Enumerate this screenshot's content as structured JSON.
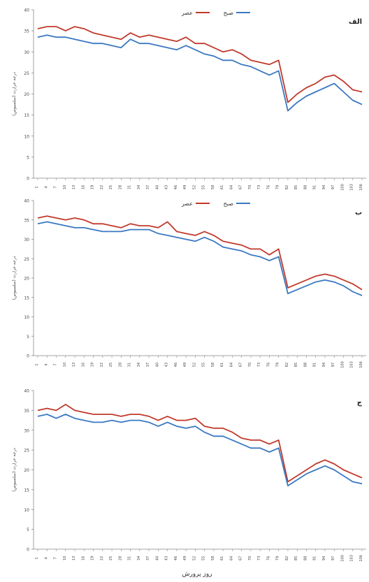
{
  "figure": {
    "xlabel": "روز پرورش"
  },
  "chart_data": [
    {
      "type": "line",
      "panel_label": "الف",
      "ylabel": "درجه حرارت (سلسیوس)",
      "ylim": [
        0,
        40
      ],
      "yticks": [
        0,
        5,
        10,
        15,
        20,
        25,
        30,
        35,
        40
      ],
      "legend": {
        "placement": "top-center",
        "entries": [
          "عصر",
          "صبح"
        ]
      },
      "x": [
        1,
        4,
        7,
        10,
        13,
        16,
        19,
        22,
        25,
        28,
        31,
        34,
        37,
        40,
        43,
        46,
        49,
        52,
        55,
        58,
        61,
        64,
        67,
        70,
        73,
        76,
        79,
        82,
        85,
        88,
        91,
        94,
        97,
        100,
        103,
        106
      ],
      "series": [
        {
          "name": "عصر",
          "color": "#c0392b",
          "values": [
            35.5,
            36,
            36,
            35,
            36,
            35.5,
            34.5,
            34,
            33.5,
            33,
            34.5,
            33.5,
            34,
            33.5,
            33,
            32.5,
            33.5,
            32,
            32,
            31,
            30,
            30.5,
            29.5,
            28,
            27.5,
            27,
            28,
            18,
            20,
            21.5,
            22.5,
            24,
            24.5,
            23,
            21,
            20.5
          ]
        },
        {
          "name": "صبح",
          "color": "#3a78c2",
          "values": [
            33.5,
            34,
            33.5,
            33.5,
            33,
            32.5,
            32,
            32,
            31.5,
            31,
            33,
            32,
            32,
            31.5,
            31,
            30.5,
            31.5,
            30.5,
            29.5,
            29,
            28,
            28,
            27,
            26.5,
            25.5,
            24.5,
            25.5,
            16,
            18,
            19.5,
            20.5,
            21.5,
            22.5,
            20.5,
            18.5,
            17.5
          ]
        }
      ]
    },
    {
      "type": "line",
      "panel_label": "ب",
      "ylabel": "درجه حرارت (سلسیوس)",
      "ylim": [
        0,
        40
      ],
      "yticks": [
        0,
        5,
        10,
        15,
        20,
        25,
        30,
        35,
        40
      ],
      "legend": {
        "placement": "top-center",
        "entries": [
          "عصر",
          "صبح"
        ]
      },
      "x": [
        1,
        4,
        7,
        10,
        13,
        16,
        19,
        22,
        25,
        28,
        31,
        34,
        37,
        40,
        43,
        46,
        49,
        52,
        55,
        58,
        61,
        64,
        67,
        70,
        73,
        76,
        79,
        82,
        85,
        88,
        91,
        94,
        97,
        100,
        103,
        106
      ],
      "series": [
        {
          "name": "عصر",
          "color": "#c0392b",
          "values": [
            35.5,
            36,
            35.5,
            35,
            35.5,
            35,
            34,
            34,
            33.5,
            33,
            34,
            33.5,
            33.5,
            33,
            34.5,
            32,
            31.5,
            31,
            32,
            31,
            29.5,
            29,
            28.5,
            27.5,
            27.5,
            26,
            27.5,
            17.5,
            18.5,
            19.5,
            20.5,
            21,
            20.5,
            19.5,
            18.5,
            17
          ]
        },
        {
          "name": "صبح",
          "color": "#3a78c2",
          "values": [
            34,
            34.5,
            34,
            33.5,
            33,
            33,
            32.5,
            32,
            32,
            32,
            32.5,
            32.5,
            32.5,
            31.5,
            31,
            30.5,
            30,
            29.5,
            30.5,
            29.5,
            28,
            27.5,
            27,
            26,
            25.5,
            24.5,
            25.5,
            16,
            17,
            18,
            19,
            19.5,
            19,
            18,
            16.5,
            15.5
          ]
        }
      ]
    },
    {
      "type": "line",
      "panel_label": "ج",
      "ylabel": "درجه حرارت (سلسیوس)",
      "ylim": [
        0,
        40
      ],
      "yticks": [
        0,
        5,
        10,
        15,
        20,
        25,
        30,
        35,
        40
      ],
      "x": [
        1,
        4,
        7,
        10,
        13,
        16,
        19,
        22,
        25,
        28,
        31,
        34,
        37,
        40,
        43,
        46,
        49,
        52,
        55,
        58,
        61,
        64,
        67,
        70,
        73,
        76,
        79,
        82,
        85,
        88,
        91,
        94,
        97,
        100,
        103,
        106
      ],
      "series": [
        {
          "name": "عصر",
          "color": "#c0392b",
          "values": [
            35,
            35.5,
            35,
            36.5,
            35,
            34.5,
            34,
            34,
            34,
            33.5,
            34,
            34,
            33.5,
            32.5,
            33.5,
            32.5,
            32.5,
            33,
            31,
            30.5,
            30.5,
            29.5,
            28,
            27.5,
            27.5,
            26.5,
            27.5,
            17,
            18.5,
            20,
            21.5,
            22.5,
            21.5,
            20,
            19,
            18
          ]
        },
        {
          "name": "صبح",
          "color": "#3a78c2",
          "values": [
            33.5,
            34,
            33,
            34,
            33,
            32.5,
            32,
            32,
            32.5,
            32,
            32.5,
            32.5,
            32,
            31,
            32,
            31,
            30.5,
            31,
            29.5,
            28.5,
            28.5,
            27.5,
            26.5,
            25.5,
            25.5,
            24.5,
            25.5,
            16,
            17.5,
            19,
            20,
            21,
            20,
            18.5,
            17,
            16.5
          ]
        }
      ]
    }
  ]
}
